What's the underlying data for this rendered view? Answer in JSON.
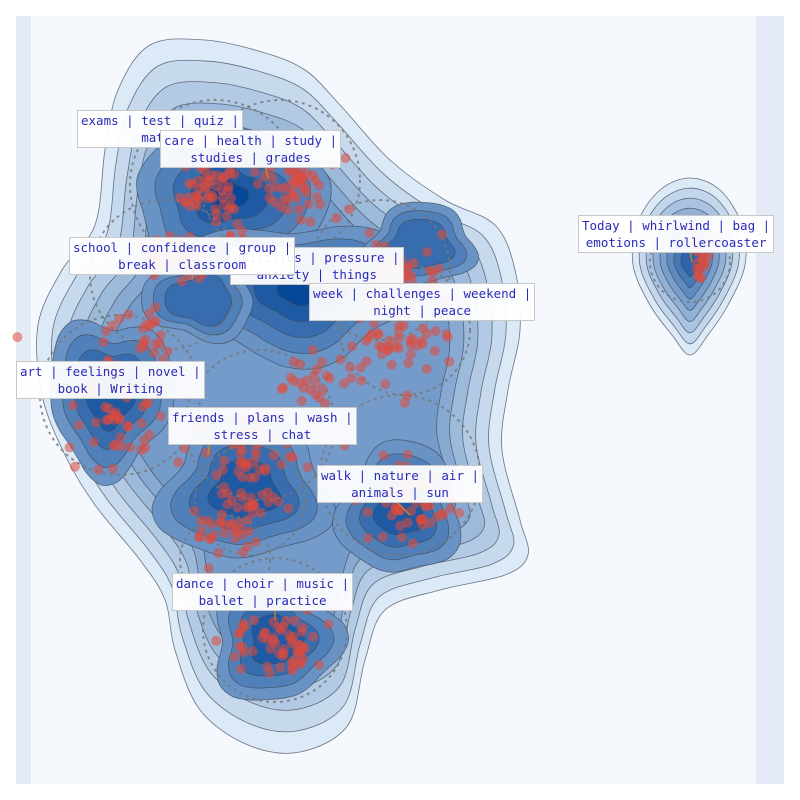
{
  "colors": {
    "background": "#e5ebf6",
    "plot_background": "#f5f8fd",
    "density_light": "#dce9f6",
    "density_dark": "#0b4c9c",
    "points": "#e04a3c",
    "contour_line": "#3d4a5a",
    "circle_dash": "#777777",
    "label_text": "#2a2ab8"
  },
  "chart_data": {
    "type": "scatter",
    "style": "document-map with kernel-density contours, dashed topic circles and topic keyword labels",
    "grid": false,
    "legend": "none",
    "topics": [
      {
        "id": "exams",
        "line1": "exams | test | quiz |",
        "line2": "maths"
      },
      {
        "id": "care",
        "line1": "care | health | study |",
        "line2": "studies | grades"
      },
      {
        "id": "school",
        "line1": "school | confidence | group |",
        "line2": "break | classroom"
      },
      {
        "id": "abilities",
        "line1": "abilities | pressure |",
        "line2": "anxiety | things"
      },
      {
        "id": "week",
        "line1": "week | challenges | weekend |",
        "line2": "night | peace"
      },
      {
        "id": "art",
        "line1": "art | feelings | novel |",
        "line2": "book | Writing"
      },
      {
        "id": "friends",
        "line1": "friends | plans | wash |",
        "line2": "stress | chat"
      },
      {
        "id": "walk",
        "line1": "walk | nature | air |",
        "line2": "animals | sun"
      },
      {
        "id": "dance",
        "line1": "dance | choir | music |",
        "line2": "ballet | practice"
      },
      {
        "id": "today",
        "line1": "Today | whirlwind | bag |",
        "line2": "emotions | rollercoaster"
      }
    ]
  }
}
